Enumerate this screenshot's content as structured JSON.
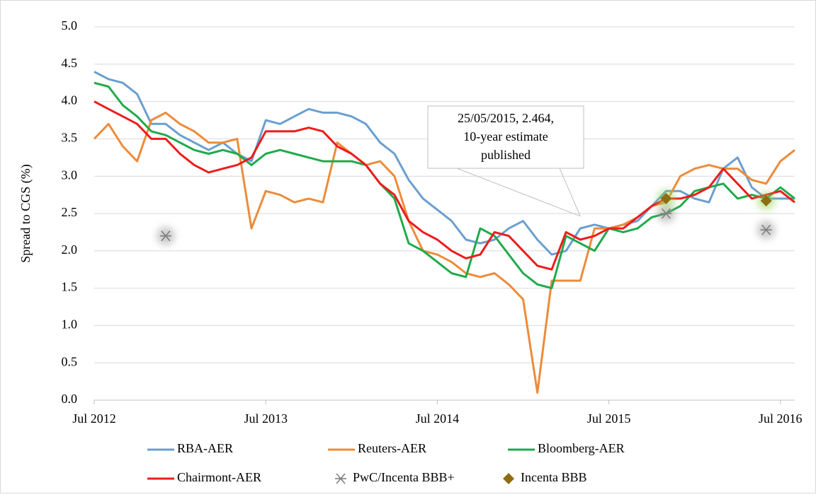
{
  "chart_data": {
    "type": "line",
    "y_label": "Spread to CGS (%)",
    "x": [
      "2012-07",
      "2012-08",
      "2012-09",
      "2012-10",
      "2012-11",
      "2012-12",
      "2013-01",
      "2013-02",
      "2013-03",
      "2013-04",
      "2013-05",
      "2013-06",
      "2013-07",
      "2013-08",
      "2013-09",
      "2013-10",
      "2013-11",
      "2013-12",
      "2014-01",
      "2014-02",
      "2014-03",
      "2014-04",
      "2014-05",
      "2014-06",
      "2014-07",
      "2014-08",
      "2014-09",
      "2014-10",
      "2014-11",
      "2014-12",
      "2015-01",
      "2015-02",
      "2015-03",
      "2015-04",
      "2015-05",
      "2015-06",
      "2015-07",
      "2015-08",
      "2015-09",
      "2015-10",
      "2015-11",
      "2015-12",
      "2016-01",
      "2016-02",
      "2016-03",
      "2016-04",
      "2016-05",
      "2016-06",
      "2016-07",
      "2016-08"
    ],
    "xlim": [
      "2012-07",
      "2016-08"
    ],
    "xticks": [
      {
        "value": "2012-07",
        "label": "Jul 2012"
      },
      {
        "value": "2013-07",
        "label": "Jul 2013"
      },
      {
        "value": "2014-07",
        "label": "Jul 2014"
      },
      {
        "value": "2015-07",
        "label": "Jul 2015"
      },
      {
        "value": "2016-07",
        "label": "Jul 2016"
      }
    ],
    "ylim": [
      0,
      5
    ],
    "yticks": [
      {
        "value": 0,
        "label": "0.0"
      },
      {
        "value": 0.5,
        "label": "0.5"
      },
      {
        "value": 1,
        "label": "1.0"
      },
      {
        "value": 1.5,
        "label": "1.5"
      },
      {
        "value": 2,
        "label": "2.0"
      },
      {
        "value": 2.5,
        "label": "2.5"
      },
      {
        "value": 3,
        "label": "3.0"
      },
      {
        "value": 3.5,
        "label": "3.5"
      },
      {
        "value": 4,
        "label": "4.0"
      },
      {
        "value": 4.5,
        "label": "4.5"
      },
      {
        "value": 5,
        "label": "5.0"
      }
    ],
    "grid": true,
    "legend": "bottom",
    "series": [
      {
        "name": "RBA-AER",
        "color": "#6a9fcf",
        "values": [
          4.4,
          4.3,
          4.25,
          4.1,
          3.7,
          3.7,
          3.55,
          3.45,
          3.35,
          3.45,
          3.3,
          3.2,
          3.75,
          3.7,
          3.8,
          3.9,
          3.85,
          3.85,
          3.8,
          3.7,
          3.45,
          3.3,
          2.95,
          2.7,
          2.55,
          2.4,
          2.15,
          2.1,
          2.15,
          2.3,
          2.4,
          2.15,
          1.95,
          2.0,
          2.3,
          2.35,
          2.3,
          2.35,
          2.4,
          2.6,
          2.8,
          2.8,
          2.7,
          2.65,
          3.1,
          3.25,
          2.85,
          2.7,
          2.7,
          2.7
        ]
      },
      {
        "name": "Reuters-AER",
        "color": "#ed8b3a",
        "values": [
          3.5,
          3.7,
          3.4,
          3.2,
          3.75,
          3.85,
          3.7,
          3.6,
          3.45,
          3.45,
          3.5,
          2.3,
          2.8,
          2.75,
          2.65,
          2.7,
          2.65,
          3.45,
          3.3,
          3.15,
          3.2,
          3.0,
          2.4,
          2.0,
          1.95,
          1.85,
          1.7,
          1.65,
          1.7,
          1.55,
          1.35,
          0.1,
          1.6,
          1.6,
          1.6,
          2.3,
          2.3,
          2.35,
          2.45,
          2.6,
          2.65,
          3.0,
          3.1,
          3.15,
          3.1,
          3.1,
          2.95,
          2.9,
          3.2,
          3.35
        ]
      },
      {
        "name": "Bloomberg-AER",
        "color": "#1faa4b",
        "values": [
          4.25,
          4.2,
          3.95,
          3.8,
          3.6,
          3.55,
          3.45,
          3.35,
          3.3,
          3.35,
          3.3,
          3.15,
          3.3,
          3.35,
          3.3,
          3.25,
          3.2,
          3.2,
          3.2,
          3.15,
          2.9,
          2.7,
          2.1,
          2.0,
          1.85,
          1.7,
          1.65,
          2.3,
          2.2,
          1.95,
          1.7,
          1.55,
          1.5,
          2.2,
          2.1,
          2.0,
          2.3,
          2.25,
          2.3,
          2.45,
          2.5,
          2.6,
          2.8,
          2.85,
          2.9,
          2.7,
          2.75,
          2.7,
          2.85,
          2.7
        ]
      },
      {
        "name": "Chairmont-AER",
        "color": "#ee1c1c",
        "values": [
          4.0,
          3.9,
          3.8,
          3.7,
          3.5,
          3.5,
          3.3,
          3.15,
          3.05,
          3.1,
          3.15,
          3.25,
          3.6,
          3.6,
          3.6,
          3.65,
          3.6,
          3.4,
          3.3,
          3.15,
          2.9,
          2.75,
          2.4,
          2.25,
          2.15,
          2.0,
          1.9,
          1.95,
          2.25,
          2.2,
          2.0,
          1.8,
          1.75,
          2.25,
          2.15,
          2.2,
          2.3,
          2.3,
          2.45,
          2.6,
          2.7,
          2.7,
          2.75,
          2.85,
          3.1,
          2.9,
          2.7,
          2.75,
          2.8,
          2.65
        ]
      },
      {
        "name": "PwC/Incenta BBB+",
        "type": "scatter",
        "marker": "asterisk",
        "color": "#7f7f7f",
        "x": [
          "2012-12",
          "2015-11",
          "2016-06"
        ],
        "values": [
          2.2,
          2.5,
          2.28
        ]
      },
      {
        "name": "Incenta BBB",
        "type": "scatter",
        "marker": "diamond",
        "color": "#8f6d12",
        "x": [
          "2015-11",
          "2016-06"
        ],
        "values": [
          2.7,
          2.67
        ]
      }
    ],
    "annotation": {
      "text": [
        "25/05/2015, 2.464,",
        "10-year estimate",
        "published"
      ],
      "x": "2015-05",
      "y": 2.464
    }
  }
}
